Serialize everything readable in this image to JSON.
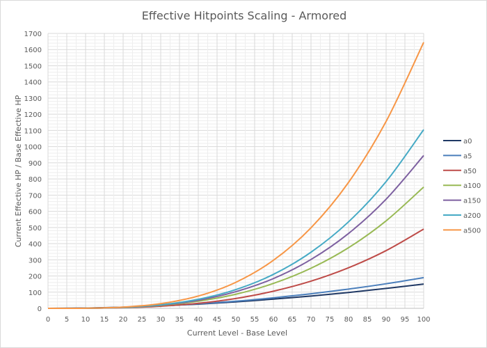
{
  "chart_data": {
    "type": "line",
    "title": "Effective Hitpoints Scaling - Armored",
    "xlabel": "Current Level - Base Level",
    "ylabel": "Current Effective HP / Base Effective HP",
    "xlim": [
      0,
      100
    ],
    "ylim": [
      0,
      1700
    ],
    "xticks": [
      "0",
      "5",
      "10",
      "15",
      "20",
      "25",
      "30",
      "35",
      "40",
      "45",
      "50",
      "55",
      "60",
      "65",
      "70",
      "75",
      "80",
      "85",
      "90",
      "95",
      "100"
    ],
    "yticks": [
      "0",
      "100",
      "200",
      "300",
      "400",
      "500",
      "600",
      "700",
      "800",
      "900",
      "1000",
      "1100",
      "1200",
      "1300",
      "1400",
      "1500",
      "1600",
      "1700"
    ],
    "grid": true,
    "legend_position": "right",
    "x": [
      0,
      10,
      20,
      30,
      40,
      50,
      60,
      70,
      80,
      90,
      100
    ],
    "series": [
      {
        "name": "a0",
        "color": "#1f3864",
        "values": [
          0,
          1.9,
          7,
          15,
          26,
          40,
          57,
          76,
          98,
          123,
          150
        ]
      },
      {
        "name": "a5",
        "color": "#4a7ebb",
        "values": [
          0,
          1.5,
          6.5,
          15,
          28,
          44,
          65,
          90,
          119,
          152,
          190
        ]
      },
      {
        "name": "a50",
        "color": "#be4b48",
        "values": [
          0,
          0.5,
          3.9,
          13,
          31,
          61,
          106,
          168,
          251,
          357,
          490
        ]
      },
      {
        "name": "a100",
        "color": "#98b954",
        "values": [
          0,
          0.6,
          5,
          18,
          44,
          87,
          154,
          248,
          375,
          541,
          750
        ]
      },
      {
        "name": "a150",
        "color": "#7d60a0",
        "values": [
          0,
          0.6,
          5.5,
          20,
          50,
          103,
          184,
          302,
          463,
          675,
          945
        ]
      },
      {
        "name": "a200",
        "color": "#46aac5",
        "values": [
          0,
          0.6,
          5.9,
          22,
          56,
          116,
          210,
          347,
          535,
          784,
          1105
        ]
      },
      {
        "name": "a500",
        "color": "#f79646",
        "values": [
          0,
          0.7,
          7.5,
          29,
          76,
          161,
          297,
          498,
          779,
          1156,
          1645
        ]
      }
    ]
  }
}
